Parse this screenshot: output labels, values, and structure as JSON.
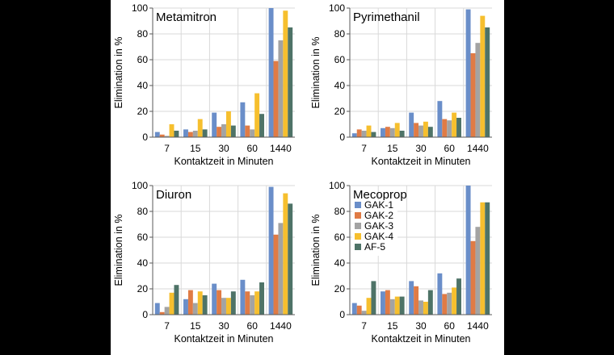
{
  "figure": {
    "shared_xlabel": "Kontaktzeit in Minuten",
    "shared_ylabel": "Elimination  in %",
    "colors": {
      "GAK-1": "#6a8ec9",
      "GAK-2": "#e07b45",
      "GAK-3": "#a3a3a3",
      "GAK-4": "#f6bf2e",
      "AF-5": "#4e7367"
    }
  },
  "chart_data": [
    {
      "type": "bar",
      "title": "Metamitron",
      "categories": [
        "7",
        "15",
        "30",
        "60",
        "1440"
      ],
      "xlabel": "Kontaktzeit in Minuten",
      "ylabel": "Elimination  in %",
      "ylim": [
        0,
        100
      ],
      "yticks": [
        0,
        20,
        40,
        60,
        80,
        100
      ],
      "grid": true,
      "legend": null,
      "series": [
        {
          "name": "GAK-1",
          "values": [
            4,
            6,
            19,
            27,
            100
          ]
        },
        {
          "name": "GAK-2",
          "values": [
            2,
            4,
            8,
            9,
            59
          ]
        },
        {
          "name": "GAK-3",
          "values": [
            1,
            5,
            10,
            6,
            75
          ]
        },
        {
          "name": "GAK-4",
          "values": [
            10,
            14,
            20,
            34,
            98
          ]
        },
        {
          "name": "AF-5",
          "values": [
            5,
            6,
            9,
            18,
            85
          ]
        }
      ]
    },
    {
      "type": "bar",
      "title": "Pyrimethanil",
      "categories": [
        "7",
        "15",
        "30",
        "60",
        "1440"
      ],
      "xlabel": "Kontaktzeit in Minuten",
      "ylabel": "Elimination  in %",
      "ylim": [
        0,
        100
      ],
      "yticks": [
        0,
        20,
        40,
        60,
        80,
        100
      ],
      "grid": true,
      "legend": null,
      "series": [
        {
          "name": "GAK-1",
          "values": [
            3,
            7,
            19,
            28,
            99
          ]
        },
        {
          "name": "GAK-2",
          "values": [
            6,
            8,
            11,
            14,
            65
          ]
        },
        {
          "name": "GAK-3",
          "values": [
            5,
            7,
            9,
            13,
            73
          ]
        },
        {
          "name": "GAK-4",
          "values": [
            9,
            11,
            12,
            19,
            94
          ]
        },
        {
          "name": "AF-5",
          "values": [
            4,
            5,
            8,
            15,
            85
          ]
        }
      ]
    },
    {
      "type": "bar",
      "title": "Diuron",
      "categories": [
        "7",
        "15",
        "30",
        "60",
        "1440"
      ],
      "xlabel": "Kontaktzeit in Minuten",
      "ylabel": "Elimination  in %",
      "ylim": [
        0,
        100
      ],
      "yticks": [
        0,
        20,
        40,
        60,
        80,
        100
      ],
      "grid": true,
      "legend": null,
      "series": [
        {
          "name": "GAK-1",
          "values": [
            9,
            12,
            24,
            27,
            99
          ]
        },
        {
          "name": "GAK-2",
          "values": [
            2,
            19,
            19,
            18,
            62
          ]
        },
        {
          "name": "GAK-3",
          "values": [
            6,
            9,
            13,
            15,
            71
          ]
        },
        {
          "name": "GAK-4",
          "values": [
            17,
            18,
            13,
            18,
            94
          ]
        },
        {
          "name": "AF-5",
          "values": [
            23,
            15,
            18,
            25,
            86
          ]
        }
      ]
    },
    {
      "type": "bar",
      "title": "Mecoprop",
      "categories": [
        "7",
        "15",
        "30",
        "60",
        "1440"
      ],
      "xlabel": "Kontaktzeit in Minuten",
      "ylabel": "Elimination  in %",
      "ylim": [
        0,
        100
      ],
      "yticks": [
        0,
        20,
        40,
        60,
        80,
        100
      ],
      "grid": true,
      "legend": "upper-left",
      "series": [
        {
          "name": "GAK-1",
          "values": [
            9,
            18,
            26,
            32,
            100
          ]
        },
        {
          "name": "GAK-2",
          "values": [
            7,
            19,
            22,
            16,
            57
          ]
        },
        {
          "name": "GAK-3",
          "values": [
            3,
            12,
            11,
            17,
            68
          ]
        },
        {
          "name": "GAK-4",
          "values": [
            13,
            14,
            10,
            21,
            87
          ]
        },
        {
          "name": "AF-5",
          "values": [
            26,
            14,
            19,
            28,
            87
          ]
        }
      ]
    }
  ]
}
